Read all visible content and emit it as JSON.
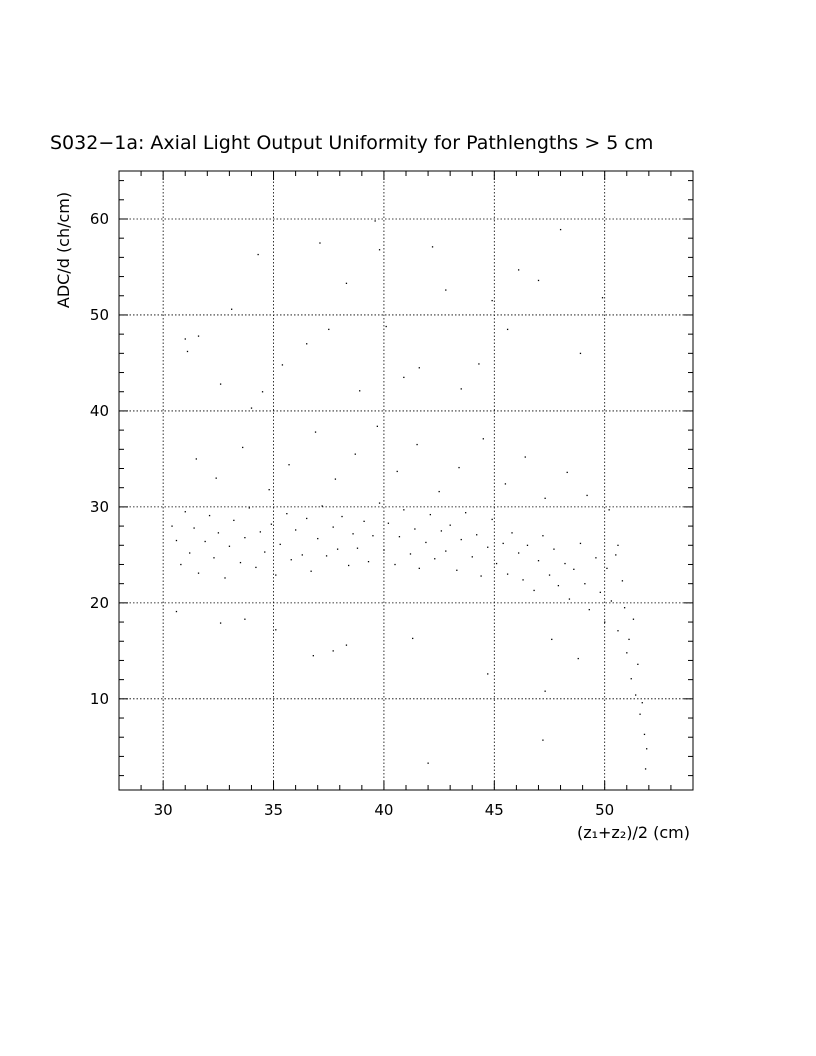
{
  "chart_data": {
    "type": "scatter",
    "title": "S032−1a: Axial Light Output Uniformity for Pathlengths > 5 cm",
    "xlabel": "(z₁+z₂)/2 (cm)",
    "ylabel": "ADC/d (ch/cm)",
    "xlim": [
      28,
      54
    ],
    "ylim": [
      0.5,
      65
    ],
    "xticks": [
      30,
      35,
      40,
      45,
      50
    ],
    "xtick_labels": [
      "30",
      "35",
      "40",
      "45",
      "50"
    ],
    "yticks": [
      10,
      20,
      30,
      40,
      50,
      60
    ],
    "ytick_labels": [
      "10",
      "20",
      "30",
      "40",
      "50",
      "60"
    ],
    "grid": true,
    "legend": "none",
    "marker_color": "#000000",
    "points": [
      [
        31.0,
        47.5
      ],
      [
        31.1,
        46.2
      ],
      [
        31.6,
        47.8
      ],
      [
        32.6,
        42.8
      ],
      [
        34.0,
        40.3
      ],
      [
        34.3,
        56.3
      ],
      [
        34.5,
        42.0
      ],
      [
        35.4,
        44.8
      ],
      [
        36.5,
        47.0
      ],
      [
        37.1,
        57.5
      ],
      [
        37.5,
        48.5
      ],
      [
        38.3,
        53.3
      ],
      [
        38.9,
        42.1
      ],
      [
        39.6,
        59.8
      ],
      [
        39.8,
        56.8
      ],
      [
        40.1,
        48.8
      ],
      [
        40.9,
        43.5
      ],
      [
        41.6,
        44.5
      ],
      [
        42.2,
        57.1
      ],
      [
        42.8,
        52.6
      ],
      [
        43.5,
        42.3
      ],
      [
        44.3,
        44.9
      ],
      [
        45.6,
        48.5
      ],
      [
        46.1,
        54.7
      ],
      [
        47.0,
        53.6
      ],
      [
        48.0,
        58.9
      ],
      [
        48.9,
        46.0
      ],
      [
        49.9,
        51.8
      ],
      [
        33.1,
        50.6
      ],
      [
        44.9,
        51.5
      ],
      [
        30.6,
        19.1
      ],
      [
        32.6,
        17.9
      ],
      [
        33.7,
        18.3
      ],
      [
        35.1,
        17.2
      ],
      [
        36.8,
        14.5
      ],
      [
        37.7,
        15.0
      ],
      [
        38.3,
        15.6
      ],
      [
        41.3,
        16.3
      ],
      [
        42.0,
        3.3
      ],
      [
        44.7,
        12.6
      ],
      [
        47.2,
        5.7
      ],
      [
        47.3,
        10.8
      ],
      [
        47.6,
        16.2
      ],
      [
        48.8,
        14.2
      ],
      [
        30.4,
        28.0
      ],
      [
        30.6,
        26.5
      ],
      [
        30.8,
        24.0
      ],
      [
        31.0,
        29.5
      ],
      [
        31.2,
        25.2
      ],
      [
        31.4,
        27.8
      ],
      [
        31.6,
        23.1
      ],
      [
        31.9,
        26.4
      ],
      [
        32.1,
        29.1
      ],
      [
        32.3,
        24.7
      ],
      [
        32.5,
        27.3
      ],
      [
        32.8,
        22.6
      ],
      [
        33.0,
        25.9
      ],
      [
        33.2,
        28.6
      ],
      [
        33.5,
        24.2
      ],
      [
        33.7,
        26.8
      ],
      [
        33.9,
        29.9
      ],
      [
        34.2,
        23.7
      ],
      [
        34.4,
        27.4
      ],
      [
        34.6,
        25.3
      ],
      [
        34.9,
        28.2
      ],
      [
        35.1,
        22.9
      ],
      [
        35.3,
        26.1
      ],
      [
        35.6,
        29.3
      ],
      [
        35.8,
        24.5
      ],
      [
        36.0,
        27.6
      ],
      [
        36.3,
        25.0
      ],
      [
        36.5,
        28.8
      ],
      [
        36.7,
        23.3
      ],
      [
        37.0,
        26.7
      ],
      [
        37.2,
        30.1
      ],
      [
        37.4,
        24.9
      ],
      [
        37.7,
        27.9
      ],
      [
        37.9,
        25.6
      ],
      [
        38.1,
        29.0
      ],
      [
        38.4,
        23.9
      ],
      [
        38.6,
        27.2
      ],
      [
        38.8,
        25.7
      ],
      [
        39.1,
        28.5
      ],
      [
        39.3,
        24.3
      ],
      [
        39.5,
        27.0
      ],
      [
        39.8,
        30.4
      ],
      [
        40.0,
        25.5
      ],
      [
        40.2,
        28.3
      ],
      [
        40.5,
        24.0
      ],
      [
        40.7,
        26.9
      ],
      [
        40.9,
        29.7
      ],
      [
        41.2,
        25.1
      ],
      [
        41.4,
        27.7
      ],
      [
        41.6,
        23.6
      ],
      [
        41.9,
        26.3
      ],
      [
        42.1,
        29.2
      ],
      [
        42.3,
        24.6
      ],
      [
        42.6,
        27.5
      ],
      [
        42.8,
        25.4
      ],
      [
        43.0,
        28.1
      ],
      [
        43.3,
        23.4
      ],
      [
        43.5,
        26.6
      ],
      [
        43.7,
        29.4
      ],
      [
        44.0,
        24.8
      ],
      [
        44.2,
        27.1
      ],
      [
        44.4,
        22.8
      ],
      [
        44.7,
        25.8
      ],
      [
        44.9,
        28.7
      ],
      [
        45.1,
        24.1
      ],
      [
        45.4,
        26.2
      ],
      [
        45.6,
        23.0
      ],
      [
        45.8,
        27.3
      ],
      [
        46.1,
        25.2
      ],
      [
        46.3,
        22.4
      ],
      [
        46.5,
        26.0
      ],
      [
        46.8,
        21.3
      ],
      [
        47.0,
        24.4
      ],
      [
        47.2,
        27.0
      ],
      [
        47.5,
        22.9
      ],
      [
        47.7,
        25.6
      ],
      [
        47.9,
        21.8
      ],
      [
        48.2,
        24.1
      ],
      [
        48.4,
        20.4
      ],
      [
        48.6,
        23.5
      ],
      [
        48.9,
        26.2
      ],
      [
        49.1,
        22.0
      ],
      [
        49.3,
        19.3
      ],
      [
        49.6,
        24.7
      ],
      [
        49.8,
        21.1
      ],
      [
        50.0,
        18.0
      ],
      [
        50.1,
        23.6
      ],
      [
        50.3,
        20.2
      ],
      [
        50.5,
        25.0
      ],
      [
        50.6,
        17.1
      ],
      [
        50.8,
        22.3
      ],
      [
        50.9,
        19.5
      ],
      [
        51.0,
        14.8
      ],
      [
        51.1,
        16.2
      ],
      [
        51.2,
        12.1
      ],
      [
        51.3,
        18.3
      ],
      [
        51.4,
        10.4
      ],
      [
        51.5,
        13.6
      ],
      [
        51.6,
        8.4
      ],
      [
        51.7,
        9.6
      ],
      [
        51.8,
        6.3
      ],
      [
        51.9,
        4.8
      ],
      [
        51.85,
        2.7
      ],
      [
        31.5,
        35.0
      ],
      [
        32.4,
        33.0
      ],
      [
        33.6,
        36.2
      ],
      [
        34.8,
        31.8
      ],
      [
        35.7,
        34.4
      ],
      [
        36.9,
        37.8
      ],
      [
        37.8,
        32.9
      ],
      [
        38.7,
        35.5
      ],
      [
        39.7,
        38.4
      ],
      [
        40.6,
        33.7
      ],
      [
        41.5,
        36.5
      ],
      [
        42.5,
        31.6
      ],
      [
        43.4,
        34.1
      ],
      [
        44.5,
        37.1
      ],
      [
        45.5,
        32.4
      ],
      [
        46.4,
        35.2
      ],
      [
        47.3,
        30.9
      ],
      [
        48.3,
        33.6
      ],
      [
        49.2,
        31.2
      ],
      [
        50.2,
        29.7
      ],
      [
        50.6,
        26.0
      ]
    ]
  }
}
